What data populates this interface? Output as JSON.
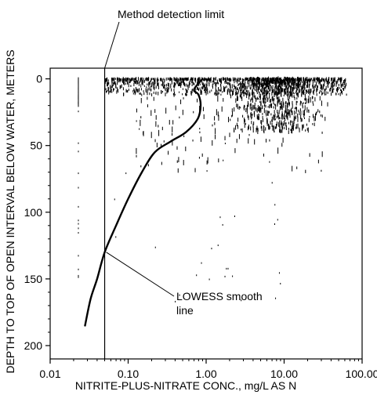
{
  "chart_data": {
    "type": "scatter",
    "title": "",
    "xlabel": "NITRITE-PLUS-NITRATE CONC., mg/L AS N",
    "ylabel": "DEPTH TO TOP OF OPEN INTERVAL BELOW WATER, METERS",
    "x_scale": "log",
    "xlim": [
      0.01,
      100
    ],
    "ylim": [
      210,
      -8
    ],
    "y_inverted": true,
    "x_ticks": [
      0.01,
      0.1,
      1,
      10,
      100
    ],
    "x_tick_labels": [
      "0.01",
      "0.10",
      "1.00",
      "10.00",
      "100.00"
    ],
    "y_ticks": [
      0,
      50,
      100,
      150,
      200
    ],
    "y_tick_labels": [
      "0",
      "50",
      "100",
      "150",
      "200"
    ],
    "grid": false,
    "legend": "none",
    "series": [
      {
        "name": "LOWESS smooth line",
        "kind": "line",
        "x": [
          0.028,
          0.033,
          0.04,
          0.05,
          0.07,
          0.1,
          0.15,
          0.22,
          0.35,
          0.55,
          0.78,
          0.85,
          0.8,
          0.7,
          0.9
        ],
        "y": [
          185,
          165,
          150,
          130,
          110,
          90,
          70,
          55,
          47,
          40,
          30,
          20,
          12,
          8,
          0
        ]
      },
      {
        "name": "Method detection limit",
        "kind": "vline",
        "x": 0.05
      }
    ],
    "annotations": [
      {
        "text": "Method detection limit",
        "target": "vertical line at x = 0.05"
      },
      {
        "text": "LOWESS smooth line",
        "target": "smoothed curve near depth 130 m"
      }
    ],
    "colors": {
      "ink": "#000000",
      "background": "#ffffff"
    }
  }
}
